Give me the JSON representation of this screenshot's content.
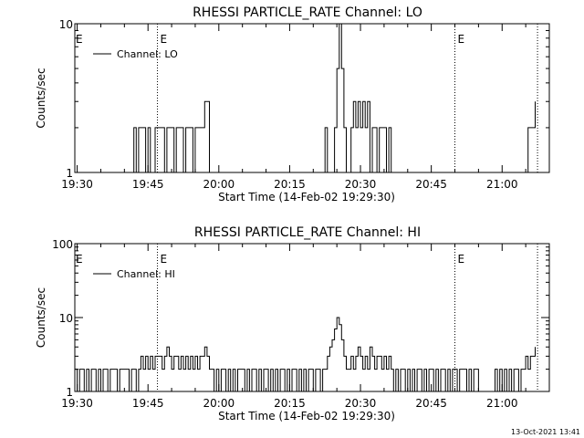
{
  "footer_timestamp": "13-Oct-2021 13:41",
  "chart_data": [
    {
      "type": "line",
      "title": "RHESSI PARTICLE_RATE Channel: LO",
      "xlabel": "Start Time (14-Feb-02 19:29:30)",
      "ylabel": "Counts/sec",
      "y_scale": "log",
      "ylim": [
        1,
        10
      ],
      "xlim": [
        "19:29:30",
        "21:10:00"
      ],
      "y_ticks": [
        {
          "value": 1,
          "label": "1"
        },
        {
          "value": 10,
          "label": "10"
        }
      ],
      "x_ticks": [
        "19:30",
        "19:45",
        "20:00",
        "20:15",
        "20:30",
        "20:45",
        "21:00"
      ],
      "legend": {
        "position": "top-left",
        "entries": [
          "Channel: LO"
        ]
      },
      "vlines": [
        {
          "time": "19:47:00",
          "label": "E"
        },
        {
          "time": "20:50:00",
          "label": "E"
        },
        {
          "time": "21:07:30",
          "label": ""
        }
      ],
      "series": [
        {
          "name": "Channel: LO",
          "points": [
            [
              "19:29:30",
              1
            ],
            [
              "19:41:30",
              1
            ],
            [
              "19:42:00",
              2
            ],
            [
              "19:42:30",
              1
            ],
            [
              "19:43:00",
              2
            ],
            [
              "19:44:00",
              2
            ],
            [
              "19:44:30",
              1
            ],
            [
              "19:45:00",
              2
            ],
            [
              "19:45:30",
              1
            ],
            [
              "19:46:00",
              1
            ],
            [
              "19:46:30",
              2
            ],
            [
              "19:48:00",
              2
            ],
            [
              "19:48:30",
              1
            ],
            [
              "19:49:00",
              2
            ],
            [
              "19:50:00",
              2
            ],
            [
              "19:50:30",
              1
            ],
            [
              "19:51:00",
              2
            ],
            [
              "19:52:00",
              2
            ],
            [
              "19:52:30",
              1
            ],
            [
              "19:53:00",
              2
            ],
            [
              "19:54:00",
              2
            ],
            [
              "19:54:30",
              1
            ],
            [
              "19:55:00",
              2
            ],
            [
              "19:56:00",
              2
            ],
            [
              "19:57:00",
              3
            ],
            [
              "19:58:00",
              1
            ],
            [
              "20:22:00",
              1
            ],
            [
              "20:22:30",
              2
            ],
            [
              "20:23:00",
              1
            ],
            [
              "20:24:00",
              1
            ],
            [
              "20:24:30",
              2
            ],
            [
              "20:25:00",
              5
            ],
            [
              "20:25:30",
              10
            ],
            [
              "20:26:00",
              5
            ],
            [
              "20:26:30",
              2
            ],
            [
              "20:27:00",
              1
            ],
            [
              "20:27:30",
              1
            ],
            [
              "20:28:00",
              2
            ],
            [
              "20:28:30",
              3
            ],
            [
              "20:29:00",
              2
            ],
            [
              "20:29:30",
              3
            ],
            [
              "20:30:00",
              2
            ],
            [
              "20:30:30",
              3
            ],
            [
              "20:31:00",
              2
            ],
            [
              "20:31:30",
              3
            ],
            [
              "20:32:00",
              1
            ],
            [
              "20:32:30",
              2
            ],
            [
              "20:33:00",
              2
            ],
            [
              "20:33:30",
              1
            ],
            [
              "20:34:00",
              2
            ],
            [
              "20:35:00",
              2
            ],
            [
              "20:35:30",
              1
            ],
            [
              "20:36:00",
              2
            ],
            [
              "20:36:30",
              1
            ],
            [
              "21:05:00",
              1
            ],
            [
              "21:05:30",
              2
            ],
            [
              "21:06:30",
              2
            ],
            [
              "21:07:00",
              3
            ]
          ]
        }
      ]
    },
    {
      "type": "line",
      "title": "RHESSI PARTICLE_RATE Channel: HI",
      "xlabel": "Start Time (14-Feb-02 19:29:30)",
      "ylabel": "Counts/sec",
      "y_scale": "log",
      "ylim": [
        1,
        100
      ],
      "xlim": [
        "19:29:30",
        "21:10:00"
      ],
      "y_ticks": [
        {
          "value": 1,
          "label": "1"
        },
        {
          "value": 10,
          "label": "10"
        },
        {
          "value": 100,
          "label": "100"
        }
      ],
      "x_ticks": [
        "19:30",
        "19:45",
        "20:00",
        "20:15",
        "20:30",
        "20:45",
        "21:00"
      ],
      "legend": {
        "position": "top-left",
        "entries": [
          "Channel: HI"
        ]
      },
      "vlines": [
        {
          "time": "19:47:00",
          "label": "E"
        },
        {
          "time": "20:50:00",
          "label": "E"
        },
        {
          "time": "21:07:30",
          "label": ""
        }
      ],
      "series": [
        {
          "name": "Channel: HI",
          "points": [
            [
              "19:29:30",
              2
            ],
            [
              "19:30:00",
              1
            ],
            [
              "19:30:30",
              2
            ],
            [
              "19:31:00",
              2
            ],
            [
              "19:31:30",
              1
            ],
            [
              "19:32:00",
              2
            ],
            [
              "19:32:30",
              1
            ],
            [
              "19:33:00",
              2
            ],
            [
              "19:33:30",
              2
            ],
            [
              "19:34:00",
              1
            ],
            [
              "19:34:30",
              2
            ],
            [
              "19:35:00",
              1
            ],
            [
              "19:35:30",
              2
            ],
            [
              "19:36:00",
              2
            ],
            [
              "19:36:30",
              1
            ],
            [
              "19:37:00",
              2
            ],
            [
              "19:38:00",
              2
            ],
            [
              "19:38:30",
              1
            ],
            [
              "19:39:00",
              2
            ],
            [
              "19:40:30",
              2
            ],
            [
              "19:41:00",
              1
            ],
            [
              "19:41:30",
              2
            ],
            [
              "19:42:00",
              2
            ],
            [
              "19:42:30",
              1
            ],
            [
              "19:43:00",
              2
            ],
            [
              "19:43:30",
              3
            ],
            [
              "19:44:00",
              2
            ],
            [
              "19:44:30",
              3
            ],
            [
              "19:45:00",
              2
            ],
            [
              "19:45:30",
              3
            ],
            [
              "19:46:00",
              2
            ],
            [
              "19:46:30",
              3
            ],
            [
              "19:47:30",
              3
            ],
            [
              "19:48:00",
              2
            ],
            [
              "19:48:30",
              3
            ],
            [
              "19:49:00",
              4
            ],
            [
              "19:49:30",
              3
            ],
            [
              "19:50:00",
              2
            ],
            [
              "19:50:30",
              3
            ],
            [
              "19:51:00",
              3
            ],
            [
              "19:51:30",
              2
            ],
            [
              "19:52:00",
              3
            ],
            [
              "19:52:30",
              2
            ],
            [
              "19:53:00",
              3
            ],
            [
              "19:53:30",
              2
            ],
            [
              "19:54:00",
              3
            ],
            [
              "19:54:30",
              2
            ],
            [
              "19:55:00",
              3
            ],
            [
              "19:55:30",
              2
            ],
            [
              "19:56:00",
              3
            ],
            [
              "19:56:30",
              3
            ],
            [
              "19:57:00",
              4
            ],
            [
              "19:57:30",
              3
            ],
            [
              "19:58:00",
              2
            ],
            [
              "19:58:30",
              2
            ],
            [
              "19:59:00",
              1
            ],
            [
              "19:59:30",
              2
            ],
            [
              "20:00:00",
              1
            ],
            [
              "20:00:30",
              2
            ],
            [
              "20:01:00",
              2
            ],
            [
              "20:01:30",
              1
            ],
            [
              "20:02:00",
              2
            ],
            [
              "20:02:30",
              1
            ],
            [
              "20:03:00",
              2
            ],
            [
              "20:03:30",
              1
            ],
            [
              "20:04:00",
              2
            ],
            [
              "20:05:00",
              2
            ],
            [
              "20:05:30",
              1
            ],
            [
              "20:06:00",
              2
            ],
            [
              "20:06:30",
              1
            ],
            [
              "20:07:00",
              2
            ],
            [
              "20:07:30",
              2
            ],
            [
              "20:08:00",
              1
            ],
            [
              "20:08:30",
              2
            ],
            [
              "20:09:00",
              1
            ],
            [
              "20:09:30",
              2
            ],
            [
              "20:10:00",
              2
            ],
            [
              "20:10:30",
              1
            ],
            [
              "20:11:00",
              2
            ],
            [
              "20:11:30",
              1
            ],
            [
              "20:12:00",
              2
            ],
            [
              "20:12:30",
              1
            ],
            [
              "20:13:00",
              2
            ],
            [
              "20:13:30",
              2
            ],
            [
              "20:14:00",
              1
            ],
            [
              "20:14:30",
              2
            ],
            [
              "20:15:00",
              1
            ],
            [
              "20:15:30",
              2
            ],
            [
              "20:16:00",
              2
            ],
            [
              "20:16:30",
              1
            ],
            [
              "20:17:00",
              2
            ],
            [
              "20:17:30",
              1
            ],
            [
              "20:18:00",
              2
            ],
            [
              "20:18:30",
              1
            ],
            [
              "20:19:00",
              2
            ],
            [
              "20:19:30",
              2
            ],
            [
              "20:20:00",
              1
            ],
            [
              "20:20:30",
              2
            ],
            [
              "20:21:00",
              2
            ],
            [
              "20:21:30",
              1
            ],
            [
              "20:22:00",
              2
            ],
            [
              "20:22:30",
              2
            ],
            [
              "20:23:00",
              3
            ],
            [
              "20:23:30",
              4
            ],
            [
              "20:24:00",
              5
            ],
            [
              "20:24:30",
              7
            ],
            [
              "20:25:00",
              10
            ],
            [
              "20:25:30",
              8
            ],
            [
              "20:26:00",
              5
            ],
            [
              "20:26:30",
              3
            ],
            [
              "20:27:00",
              2
            ],
            [
              "20:27:30",
              2
            ],
            [
              "20:28:00",
              3
            ],
            [
              "20:28:30",
              2
            ],
            [
              "20:29:00",
              3
            ],
            [
              "20:29:30",
              4
            ],
            [
              "20:30:00",
              3
            ],
            [
              "20:30:30",
              2
            ],
            [
              "20:31:00",
              3
            ],
            [
              "20:31:30",
              2
            ],
            [
              "20:32:00",
              4
            ],
            [
              "20:32:30",
              3
            ],
            [
              "20:33:00",
              2
            ],
            [
              "20:33:30",
              3
            ],
            [
              "20:34:00",
              3
            ],
            [
              "20:34:30",
              2
            ],
            [
              "20:35:00",
              3
            ],
            [
              "20:35:30",
              2
            ],
            [
              "20:36:00",
              3
            ],
            [
              "20:36:30",
              2
            ],
            [
              "20:37:00",
              1
            ],
            [
              "20:37:30",
              2
            ],
            [
              "20:38:00",
              1
            ],
            [
              "20:38:30",
              2
            ],
            [
              "20:39:00",
              2
            ],
            [
              "20:39:30",
              1
            ],
            [
              "20:40:00",
              2
            ],
            [
              "20:40:30",
              1
            ],
            [
              "20:41:00",
              2
            ],
            [
              "20:41:30",
              1
            ],
            [
              "20:42:00",
              2
            ],
            [
              "20:42:30",
              2
            ],
            [
              "20:43:00",
              1
            ],
            [
              "20:43:30",
              2
            ],
            [
              "20:44:00",
              1
            ],
            [
              "20:44:30",
              2
            ],
            [
              "20:45:00",
              2
            ],
            [
              "20:45:30",
              1
            ],
            [
              "20:46:00",
              2
            ],
            [
              "20:46:30",
              1
            ],
            [
              "20:47:00",
              2
            ],
            [
              "20:47:30",
              2
            ],
            [
              "20:48:00",
              1
            ],
            [
              "20:48:30",
              2
            ],
            [
              "20:49:00",
              1
            ],
            [
              "20:49:30",
              2
            ],
            [
              "20:50:00",
              2
            ],
            [
              "20:50:30",
              1
            ],
            [
              "20:51:00",
              2
            ],
            [
              "20:52:00",
              2
            ],
            [
              "20:52:30",
              1
            ],
            [
              "20:53:00",
              2
            ],
            [
              "20:53:30",
              1
            ],
            [
              "20:54:00",
              2
            ],
            [
              "20:55:00",
              1
            ],
            [
              "20:56:00",
              1
            ],
            [
              "20:58:00",
              1
            ],
            [
              "20:58:30",
              2
            ],
            [
              "20:59:00",
              1
            ],
            [
              "20:59:30",
              2
            ],
            [
              "21:00:00",
              1
            ],
            [
              "21:00:30",
              2
            ],
            [
              "21:01:00",
              1
            ],
            [
              "21:01:30",
              2
            ],
            [
              "21:02:00",
              1
            ],
            [
              "21:02:30",
              2
            ],
            [
              "21:03:00",
              2
            ],
            [
              "21:03:30",
              1
            ],
            [
              "21:04:00",
              2
            ],
            [
              "21:04:30",
              2
            ],
            [
              "21:05:00",
              3
            ],
            [
              "21:05:30",
              2
            ],
            [
              "21:06:00",
              3
            ],
            [
              "21:06:30",
              3
            ],
            [
              "21:07:00",
              4
            ]
          ]
        }
      ]
    }
  ]
}
